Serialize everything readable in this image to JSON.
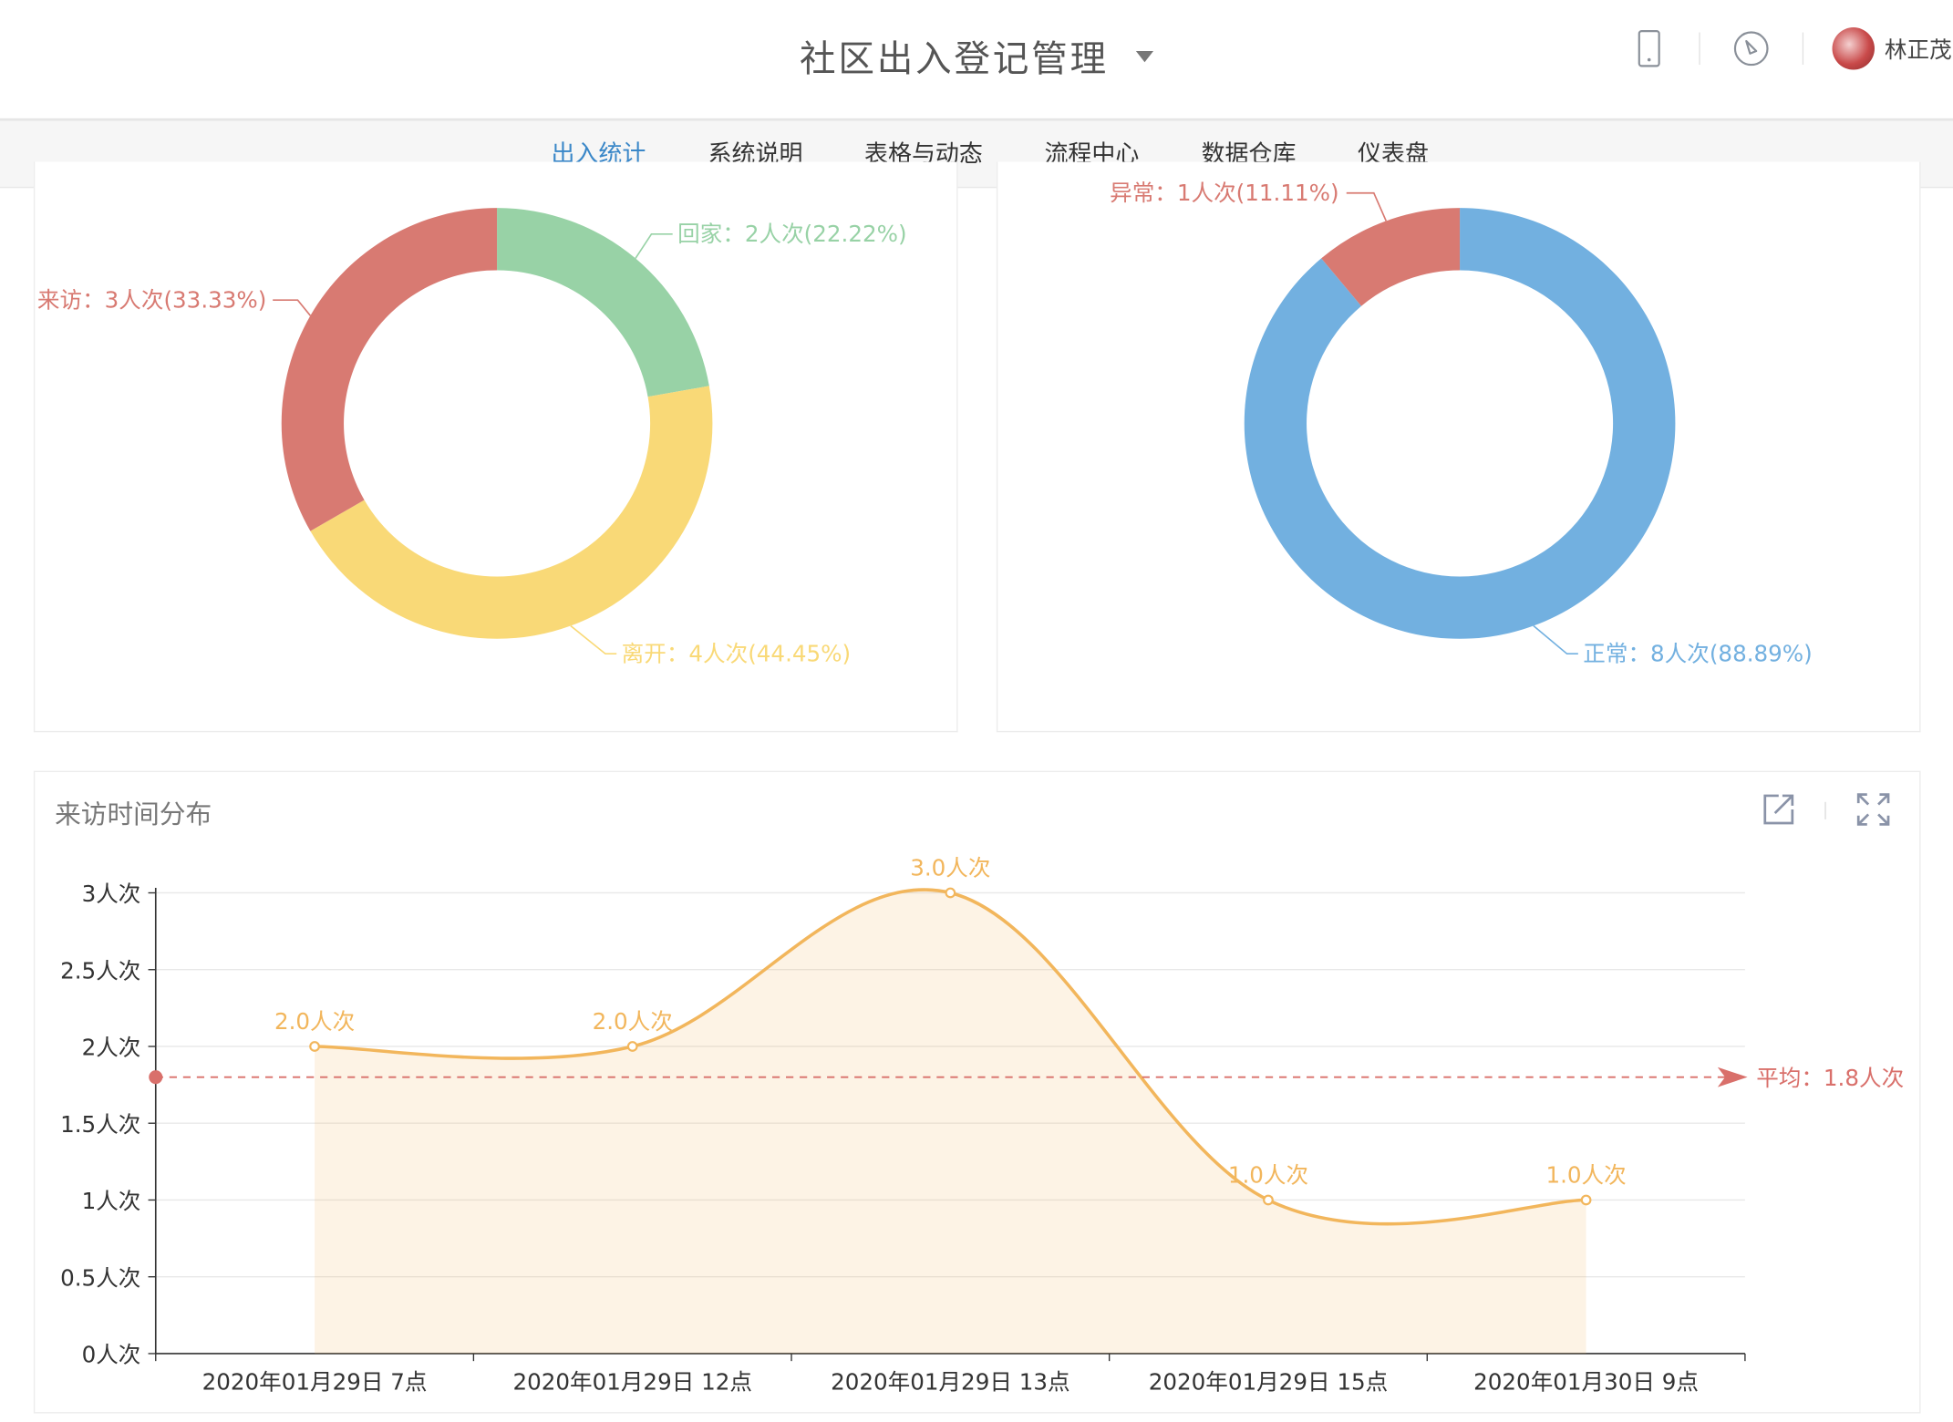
{
  "header": {
    "title": "社区出入登记管理",
    "user_name": "林正茂"
  },
  "nav": {
    "tabs": [
      {
        "label": "出入统计",
        "active": true
      },
      {
        "label": "系统说明",
        "active": false
      },
      {
        "label": "表格与动态",
        "active": false
      },
      {
        "label": "流程中心",
        "active": false
      },
      {
        "label": "数据仓库",
        "active": false
      },
      {
        "label": "仪表盘",
        "active": false
      }
    ]
  },
  "icons": {
    "mobile": "mobile-icon",
    "compass": "compass-icon",
    "export": "export-icon",
    "fullscreen": "fullscreen-icon"
  },
  "colors": {
    "accent": "#3a87c8",
    "visit": "#d87a72",
    "home": "#98d2a6",
    "leave": "#f9d977",
    "normal": "#72b0e0",
    "abnormal": "#d87a72",
    "line": "#f2b65c",
    "average": "#d9706b"
  },
  "line_panel": {
    "title": "来访时间分布"
  },
  "chart_data": [
    {
      "type": "pie",
      "variant": "donut",
      "slices": [
        {
          "name": "回家",
          "value": 2,
          "label": "回家：2人次(22.22%)"
        },
        {
          "name": "离开",
          "value": 4,
          "label": "离开：4人次(44.45%)"
        },
        {
          "name": "来访",
          "value": 3,
          "label": "来访：3人次(33.33%)"
        }
      ]
    },
    {
      "type": "pie",
      "variant": "donut",
      "slices": [
        {
          "name": "正常",
          "value": 8,
          "label": "正常：8人次(88.89%)"
        },
        {
          "name": "异常",
          "value": 1,
          "label": "异常：1人次(11.11%)"
        }
      ]
    },
    {
      "type": "area",
      "title": "来访时间分布",
      "categories": [
        "2020年01月29日 7点",
        "2020年01月29日 12点",
        "2020年01月29日 13点",
        "2020年01月29日 15点",
        "2020年01月30日 9点"
      ],
      "values": [
        2,
        2,
        3,
        1,
        1
      ],
      "data_labels": [
        "2.0人次",
        "2.0人次",
        "3.0人次",
        "1.0人次",
        "1.0人次"
      ],
      "ylim": [
        0,
        3
      ],
      "yticks": [
        0,
        0.5,
        1,
        1.5,
        2,
        2.5,
        3
      ],
      "ytick_labels": [
        "0人次",
        "0.5人次",
        "1人次",
        "1.5人次",
        "2人次",
        "2.5人次",
        "3人次"
      ],
      "average": 1.8,
      "average_label": "平均：1.8人次",
      "grid": true
    }
  ]
}
